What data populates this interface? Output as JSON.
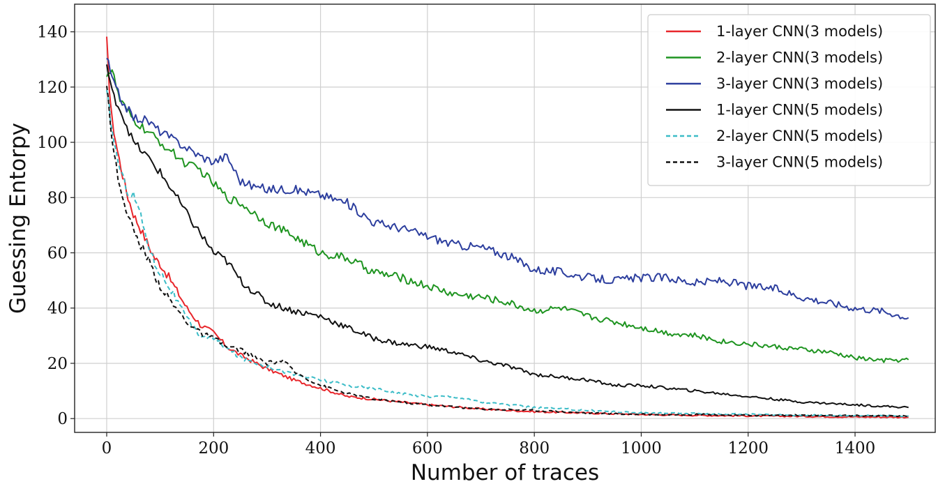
{
  "chart_data": {
    "type": "line",
    "xlabel": "Number of traces",
    "ylabel": "Guessing Entorpy",
    "xlim": [
      -60,
      1550
    ],
    "ylim": [
      -5,
      150
    ],
    "xticks": [
      0,
      200,
      400,
      600,
      800,
      1000,
      1200,
      1400
    ],
    "yticks": [
      0,
      20,
      40,
      60,
      80,
      100,
      120,
      140
    ],
    "grid": true,
    "legend_position": "top-right",
    "series": [
      {
        "name": "1-layer CNN(3 models)",
        "color": "#e8262b",
        "dash": "solid",
        "x": [
          0,
          5,
          10,
          20,
          30,
          40,
          50,
          60,
          75,
          90,
          100,
          120,
          150,
          175,
          200,
          225,
          250,
          300,
          350,
          400,
          450,
          500,
          550,
          600,
          700,
          800,
          900,
          1000,
          1100,
          1200,
          1300,
          1400,
          1500
        ],
        "y": [
          137,
          120,
          108,
          97,
          88,
          80,
          74,
          70,
          64,
          58,
          56,
          50,
          40,
          34,
          31,
          26,
          23,
          18,
          14,
          11,
          8,
          7,
          6,
          5,
          3.5,
          2.5,
          2,
          1.5,
          1.2,
          1,
          0.8,
          0.6,
          0.5
        ]
      },
      {
        "name": "2-layer CNN(3 models)",
        "color": "#1e9420",
        "dash": "solid",
        "x": [
          0,
          10,
          25,
          50,
          75,
          100,
          125,
          150,
          175,
          200,
          225,
          250,
          300,
          350,
          400,
          450,
          500,
          550,
          600,
          650,
          700,
          750,
          800,
          850,
          900,
          950,
          1000,
          1050,
          1100,
          1150,
          1200,
          1250,
          1300,
          1350,
          1400,
          1450,
          1500
        ],
        "y": [
          125,
          126,
          115,
          108,
          104,
          100,
          96,
          92,
          90,
          85,
          80,
          78,
          71,
          66,
          60,
          58,
          53,
          51,
          48,
          45,
          44,
          42,
          39,
          40,
          37,
          35,
          33,
          31,
          30,
          28,
          27,
          26,
          25,
          24,
          22,
          21,
          21.3
        ]
      },
      {
        "name": "3-layer CNN(3 models)",
        "color": "#2c3e9e",
        "dash": "solid",
        "x": [
          0,
          10,
          25,
          50,
          75,
          100,
          125,
          150,
          175,
          200,
          225,
          250,
          275,
          300,
          350,
          400,
          450,
          500,
          550,
          600,
          650,
          700,
          750,
          800,
          850,
          900,
          950,
          1000,
          1050,
          1100,
          1150,
          1200,
          1250,
          1300,
          1350,
          1400,
          1450,
          1500
        ],
        "y": [
          131,
          123,
          116,
          109,
          108,
          104,
          101,
          98,
          95,
          93,
          95,
          86,
          84,
          83,
          83,
          81,
          78,
          71,
          69,
          66,
          63,
          62,
          59,
          54,
          53,
          51,
          50,
          51,
          51,
          49,
          50,
          48,
          47,
          44,
          42,
          40,
          39,
          36.5
        ]
      },
      {
        "name": "1-layer CNN(5 models)",
        "color": "#111111",
        "dash": "solid",
        "x": [
          0,
          10,
          25,
          50,
          75,
          100,
          125,
          150,
          175,
          200,
          225,
          250,
          300,
          350,
          400,
          450,
          500,
          550,
          600,
          650,
          700,
          750,
          800,
          850,
          900,
          950,
          1000,
          1050,
          1100,
          1150,
          1200,
          1250,
          1300,
          1350,
          1400,
          1450,
          1500
        ],
        "y": [
          128,
          118,
          112,
          100,
          95,
          89,
          82,
          74,
          67,
          60,
          57,
          50,
          42,
          39,
          37,
          33,
          29,
          27,
          26,
          24,
          21,
          19,
          16,
          15,
          14,
          12,
          12,
          11,
          10,
          9,
          8,
          7,
          6,
          5.5,
          5,
          4.5,
          4
        ]
      },
      {
        "name": "2-layer CNN(5 models)",
        "color": "#3bbcc7",
        "dash": "dashed",
        "x": [
          0,
          5,
          10,
          25,
          40,
          50,
          60,
          75,
          90,
          100,
          125,
          150,
          175,
          200,
          250,
          300,
          350,
          400,
          450,
          500,
          550,
          600,
          650,
          700,
          750,
          800,
          900,
          1000,
          1100,
          1200,
          1300,
          1400,
          1500
        ],
        "y": [
          118,
          112,
          104,
          90,
          82,
          81,
          76,
          65,
          56,
          53,
          45,
          36,
          30,
          29,
          22,
          19,
          16,
          14,
          12,
          11,
          9,
          8,
          8,
          6,
          5,
          4,
          3,
          2,
          1.8,
          1.5,
          1.2,
          1,
          1
        ]
      },
      {
        "name": "3-layer CNN(5 models)",
        "color": "#111111",
        "dash": "dashed",
        "x": [
          0,
          5,
          10,
          25,
          40,
          50,
          60,
          75,
          90,
          100,
          125,
          150,
          175,
          200,
          225,
          250,
          300,
          330,
          350,
          400,
          450,
          500,
          550,
          600,
          700,
          800,
          900,
          1000,
          1100,
          1200,
          1300,
          1400,
          1500
        ],
        "y": [
          122,
          112,
          100,
          83,
          74,
          68,
          64,
          59,
          52,
          48,
          41,
          35,
          31,
          29,
          26,
          25,
          20,
          21,
          17,
          12,
          9,
          7,
          6,
          5,
          3.5,
          3,
          2,
          1.5,
          1.5,
          1.2,
          1.2,
          1,
          1
        ]
      }
    ]
  }
}
